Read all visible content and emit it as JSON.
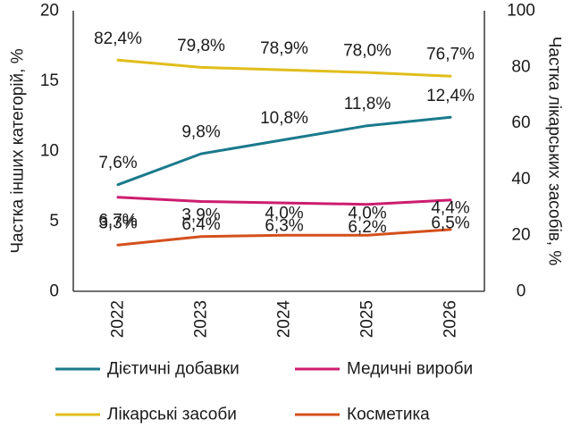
{
  "chart_data": {
    "type": "line",
    "categories": [
      "2022",
      "2023",
      "2024",
      "2025",
      "2026"
    ],
    "left_axis": {
      "label": "Частка інших категорій, %",
      "ylim": [
        0,
        20
      ],
      "ticks": [
        "0",
        "5",
        "10",
        "15",
        "20"
      ]
    },
    "right_axis": {
      "label": "Частка лікарських засобів, %",
      "ylim": [
        0,
        100
      ],
      "ticks": [
        "0",
        "20",
        "40",
        "60",
        "80",
        "100"
      ]
    },
    "series": [
      {
        "name": "Дієтичні добавки",
        "axis": "left",
        "color": "#1a7a8c",
        "values": [
          7.6,
          9.8,
          10.8,
          11.8,
          12.4
        ],
        "labels": [
          "7,6%",
          "9,8%",
          "10,8%",
          "11,8%",
          "12,4%"
        ]
      },
      {
        "name": "Медичні вироби",
        "axis": "left",
        "color": "#cc1d6e",
        "values": [
          6.7,
          6.4,
          6.3,
          6.2,
          6.5
        ],
        "labels": [
          "6,7%",
          "6,4%",
          "6,3%",
          "6,2%",
          "6,5%"
        ]
      },
      {
        "name": "Лікарські засоби",
        "axis": "right",
        "color": "#e1bd1b",
        "values": [
          82.4,
          79.8,
          78.9,
          78.0,
          76.7
        ],
        "labels": [
          "82,4%",
          "79,8%",
          "78,9%",
          "78,0%",
          "76,7%"
        ]
      },
      {
        "name": "Косметика",
        "axis": "left",
        "color": "#d4501c",
        "values": [
          3.3,
          3.9,
          4.0,
          4.0,
          4.4
        ],
        "labels": [
          "3,3%",
          "3,9%",
          "4,0%",
          "4,0%",
          "4,4%"
        ]
      }
    ],
    "legend_position": "bottom",
    "grid": false
  }
}
